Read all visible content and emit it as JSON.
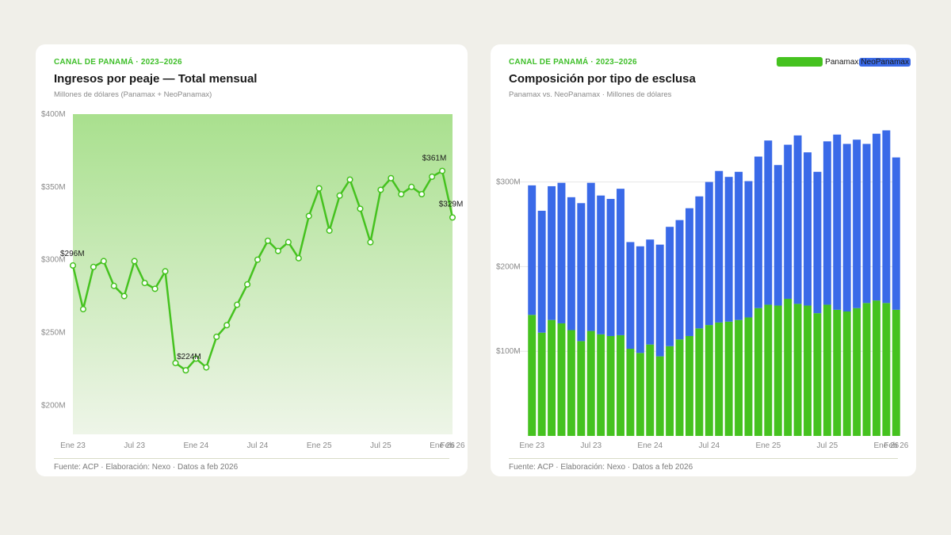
{
  "left_card": {
    "kicker": "CANAL DE PANAMÁ · 2023–2026",
    "title": "Ingresos por peaje — Total mensual",
    "subtitle": "Millones de dólares (Panamax + NeoPanamax)",
    "footer": "Fuente: ACP · Elaboración: Nexo · Datos a feb 2026"
  },
  "right_card": {
    "kicker": "CANAL DE PANAMÁ · 2023–2026",
    "title": "Composición por tipo de esclusa",
    "subtitle": "Panamax vs. NeoPanamax · Millones de dólares",
    "footer": "Fuente: ACP · Elaboración: Nexo · Datos a feb 2026"
  },
  "colors": {
    "accent_green": "#45c21f",
    "neopanamax_blue": "#3a6ae8",
    "area_top": "#a9e08e",
    "area_bottom": "#eef5e8"
  },
  "chart_data": [
    {
      "type": "line",
      "x": [
        "Ene 23",
        "Feb 23",
        "Mar 23",
        "Abr 23",
        "May 23",
        "Jun 23",
        "Jul 23",
        "Ago 23",
        "Sep 23",
        "Oct 23",
        "Nov 23",
        "Dic 23",
        "Ene 24",
        "Feb 24",
        "Mar 24",
        "Abr 24",
        "May 24",
        "Jun 24",
        "Jul 24",
        "Ago 24",
        "Sep 24",
        "Oct 24",
        "Nov 24",
        "Dic 24",
        "Ene 25",
        "Feb 25",
        "Mar 25",
        "Abr 25",
        "May 25",
        "Jun 25",
        "Jul 25",
        "Ago 25",
        "Sep 25",
        "Oct 25",
        "Nov 25",
        "Dic 25",
        "Ene 26",
        "Feb 26"
      ],
      "series": [
        {
          "values": [
            296,
            266,
            295,
            299,
            282,
            275,
            299,
            284,
            280,
            292,
            229,
            224,
            232,
            226,
            247,
            255,
            269,
            283,
            300,
            313,
            306,
            312,
            301,
            330,
            349,
            320,
            344,
            355,
            335,
            312,
            348,
            356,
            345,
            350,
            345,
            357,
            361,
            329
          ]
        }
      ],
      "ylim": [
        180,
        400
      ],
      "yticks": [
        200,
        250,
        300,
        350,
        400
      ],
      "ytick_labels": [
        "$200M",
        "$250M",
        "$300M",
        "$350M",
        "$400M"
      ],
      "xtick_labels": [
        {
          "index": 0,
          "label": "Ene 23"
        },
        {
          "index": 6,
          "label": "Jul 23"
        },
        {
          "index": 12,
          "label": "Ene 24"
        },
        {
          "index": 18,
          "label": "Jul 24"
        },
        {
          "index": 24,
          "label": "Ene 25"
        },
        {
          "index": 30,
          "label": "Jul 25"
        },
        {
          "index": 36,
          "label": "Ene 26"
        },
        {
          "index": 37,
          "label": "Feb 26"
        }
      ],
      "annotations": [
        {
          "index": 0,
          "label": "$296M"
        },
        {
          "index": 11,
          "label": "$224M"
        },
        {
          "index": 36,
          "label": "$361M"
        },
        {
          "index": 37,
          "label": "$329M"
        }
      ]
    },
    {
      "type": "bar",
      "stacked": true,
      "x": [
        "Ene 23",
        "Feb 23",
        "Mar 23",
        "Abr 23",
        "May 23",
        "Jun 23",
        "Jul 23",
        "Ago 23",
        "Sep 23",
        "Oct 23",
        "Nov 23",
        "Dic 23",
        "Ene 24",
        "Feb 24",
        "Mar 24",
        "Abr 24",
        "May 24",
        "Jun 24",
        "Jul 24",
        "Ago 24",
        "Sep 24",
        "Oct 24",
        "Nov 24",
        "Dic 24",
        "Ene 25",
        "Feb 25",
        "Mar 25",
        "Abr 25",
        "May 25",
        "Jun 25",
        "Jul 25",
        "Ago 25",
        "Sep 25",
        "Oct 25",
        "Nov 25",
        "Dic 25",
        "Ene 26",
        "Feb 26"
      ],
      "series": [
        {
          "name": "Panamax",
          "values": [
            143,
            122,
            137,
            133,
            125,
            112,
            124,
            120,
            118,
            119,
            103,
            98,
            108,
            94,
            106,
            114,
            118,
            127,
            131,
            134,
            135,
            137,
            140,
            151,
            155,
            154,
            162,
            156,
            154,
            145,
            155,
            149,
            147,
            151,
            157,
            160,
            157,
            149
          ]
        },
        {
          "name": "NeoPanamax",
          "values": [
            153,
            144,
            158,
            166,
            157,
            163,
            175,
            164,
            162,
            173,
            126,
            126,
            124,
            132,
            141,
            141,
            151,
            156,
            169,
            179,
            171,
            175,
            161,
            179,
            194,
            166,
            182,
            199,
            181,
            167,
            193,
            207,
            198,
            199,
            188,
            197,
            204,
            180
          ]
        }
      ],
      "ylim": [
        0,
        420
      ],
      "yticks": [
        100,
        200,
        300
      ],
      "ytick_labels": [
        "$100M",
        "$200M",
        "$300M"
      ],
      "xtick_labels": [
        {
          "index": 0,
          "label": "Ene 23"
        },
        {
          "index": 6,
          "label": "Jul 23"
        },
        {
          "index": 12,
          "label": "Ene 24"
        },
        {
          "index": 18,
          "label": "Jul 24"
        },
        {
          "index": 24,
          "label": "Ene 25"
        },
        {
          "index": 30,
          "label": "Jul 25"
        },
        {
          "index": 36,
          "label": "Ene 26"
        },
        {
          "index": 37,
          "label": "Feb 26"
        }
      ],
      "legend": {
        "placement": "top-right",
        "entries": [
          "Panamax",
          "NeoPanamax"
        ]
      }
    }
  ]
}
